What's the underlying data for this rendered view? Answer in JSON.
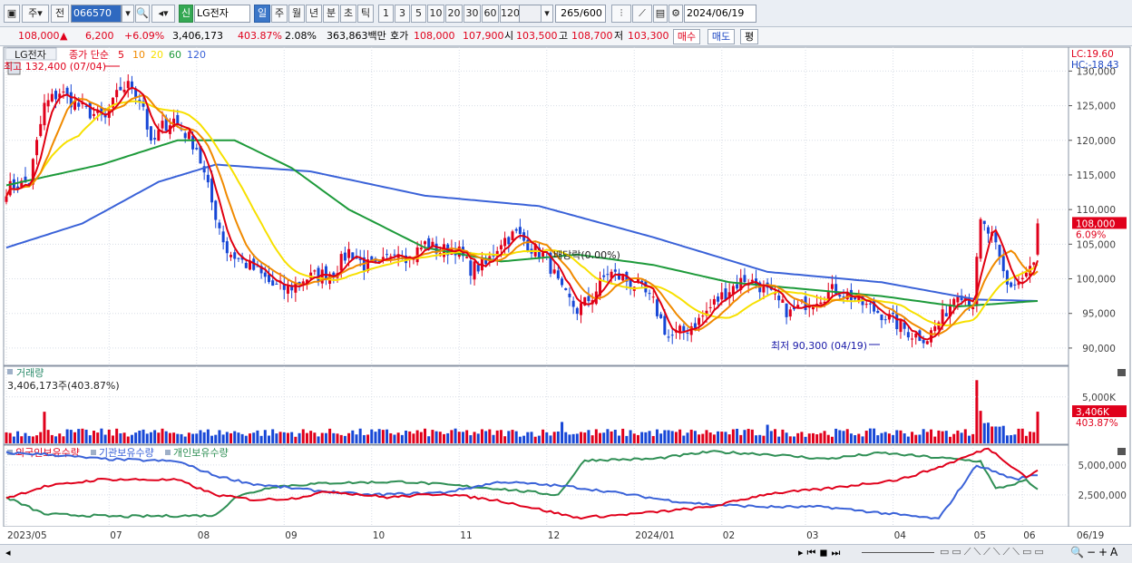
{
  "toolbar": {
    "period": "주",
    "kind": "전",
    "code": "066570",
    "name_badge": "신",
    "name": "LG전자",
    "timeframes": [
      "일",
      "주",
      "월",
      "년",
      "분",
      "초",
      "틱"
    ],
    "intervals": [
      "1",
      "3",
      "5",
      "10",
      "20",
      "30",
      "60",
      "120"
    ],
    "count": "265/600",
    "date": "2024/06/19"
  },
  "quote": {
    "price": "108,000",
    "direction": "▲",
    "change": "6,200",
    "change_pct": "+6.09%",
    "volume": "3,406,173",
    "volume_ratio": "403.87%",
    "turnover_pct": "2.08%",
    "amount": "363,863백만",
    "ask_label": "호가",
    "ask": "108,000",
    "bid": "107,900",
    "open_label": "시",
    "open": "103,500",
    "high_label": "고",
    "high": "108,700",
    "low_label": "저",
    "low": "103,300",
    "buy": "매수",
    "sell": "매도",
    "avg": "평"
  },
  "price_panel": {
    "title": "LG전자",
    "price_label": "종가 단순",
    "ma_periods": [
      "5",
      "10",
      "20",
      "60",
      "120"
    ],
    "high_note": "최고 132,400 (07/04)",
    "low_note": "최저 90,300 (04/19)",
    "dividend_note": "배당락(0.00%)",
    "lc": "LC:19.60",
    "hc": "HC:-18.43",
    "last_price": "108,000",
    "last_pct": "6.09%"
  },
  "volume_panel": {
    "title": "거래량",
    "info": "3,406,173주(403.87%)",
    "last": "3,406K",
    "last_pct": "403.87%"
  },
  "holding_panel": {
    "series_names": [
      "외국인보유수량",
      "기관보유수량",
      "개인보유수량"
    ]
  },
  "x_labels": [
    "2023/05",
    "07",
    "08",
    "09",
    "10",
    "11",
    "12",
    "2024/01",
    "02",
    "03",
    "04",
    "05",
    "06",
    "06/19"
  ],
  "colors": {
    "up": "#e0001b",
    "down": "#1747d6",
    "ma5": "#e00010",
    "ma10": "#f08a00",
    "ma20": "#f7e000",
    "ma60": "#1d9a3a",
    "ma120": "#3a62d8",
    "foreign": "#e0001b",
    "inst": "#3a62d8",
    "retail": "#2f8f55"
  },
  "chart_data": {
    "type": "candlestick",
    "price_axis": {
      "ticks": [
        130000,
        125000,
        120000,
        115000,
        110000,
        105000,
        100000,
        95000,
        90000
      ],
      "ylim": [
        87500,
        132800
      ]
    },
    "volume_axis": {
      "ticks": [
        "5,000K"
      ],
      "ylim": [
        0,
        8000000
      ]
    },
    "holding_axis": {
      "ticks": [
        "5,000,000",
        "2,500,000"
      ],
      "ylim": [
        0,
        6500000
      ]
    },
    "x_months": [
      "2023/05",
      "07",
      "08",
      "09",
      "10",
      "11",
      "12",
      "2024/01",
      "02",
      "03",
      "04",
      "05",
      "06"
    ],
    "close_anchors": [
      [
        0,
        113000
      ],
      [
        6,
        114000
      ],
      [
        10,
        125000
      ],
      [
        14,
        127000
      ],
      [
        20,
        124500
      ],
      [
        26,
        123000
      ],
      [
        30,
        127500
      ],
      [
        33,
        128000
      ],
      [
        36,
        125000
      ],
      [
        38,
        119000
      ],
      [
        41,
        122000
      ],
      [
        44,
        123000
      ],
      [
        47,
        121000
      ],
      [
        50,
        119000
      ],
      [
        54,
        111000
      ],
      [
        58,
        104000
      ],
      [
        62,
        102500
      ],
      [
        66,
        101000
      ],
      [
        70,
        99000
      ],
      [
        74,
        98500
      ],
      [
        78,
        100000
      ],
      [
        82,
        100500
      ],
      [
        86,
        101000
      ],
      [
        90,
        104000
      ],
      [
        94,
        102000
      ],
      [
        98,
        101500
      ],
      [
        102,
        104500
      ],
      [
        106,
        103000
      ],
      [
        110,
        105000
      ],
      [
        114,
        104000
      ],
      [
        118,
        104500
      ],
      [
        122,
        101500
      ],
      [
        126,
        102000
      ],
      [
        130,
        105500
      ],
      [
        134,
        106500
      ],
      [
        138,
        104500
      ],
      [
        142,
        103000
      ],
      [
        146,
        98000
      ],
      [
        150,
        95500
      ],
      [
        154,
        97500
      ],
      [
        158,
        101000
      ],
      [
        162,
        100000
      ],
      [
        166,
        99000
      ],
      [
        170,
        96500
      ],
      [
        174,
        91500
      ],
      [
        178,
        92500
      ],
      [
        182,
        94000
      ],
      [
        186,
        96500
      ],
      [
        190,
        98500
      ],
      [
        194,
        100000
      ],
      [
        198,
        99000
      ],
      [
        202,
        97000
      ],
      [
        206,
        95000
      ],
      [
        210,
        96500
      ],
      [
        214,
        97500
      ],
      [
        218,
        98500
      ],
      [
        222,
        97500
      ],
      [
        226,
        96000
      ],
      [
        230,
        95000
      ],
      [
        234,
        93500
      ],
      [
        238,
        92000
      ],
      [
        242,
        91500
      ],
      [
        246,
        94500
      ],
      [
        250,
        98500
      ],
      [
        254,
        96500
      ],
      [
        256,
        108000
      ],
      [
        259,
        106000
      ],
      [
        263,
        99000
      ],
      [
        266,
        99500
      ],
      [
        270,
        102000
      ],
      [
        271,
        108000
      ]
    ],
    "ma120_anchors": [
      [
        0,
        104500
      ],
      [
        20,
        108000
      ],
      [
        40,
        114000
      ],
      [
        55,
        116500
      ],
      [
        80,
        115500
      ],
      [
        110,
        112000
      ],
      [
        140,
        110500
      ],
      [
        170,
        106000
      ],
      [
        200,
        101000
      ],
      [
        230,
        99500
      ],
      [
        255,
        97000
      ],
      [
        271,
        96800
      ]
    ],
    "ma60_anchors": [
      [
        0,
        113500
      ],
      [
        25,
        116500
      ],
      [
        45,
        120000
      ],
      [
        60,
        120000
      ],
      [
        75,
        116000
      ],
      [
        90,
        110000
      ],
      [
        110,
        104500
      ],
      [
        130,
        102500
      ],
      [
        150,
        103500
      ],
      [
        170,
        102000
      ],
      [
        190,
        99500
      ],
      [
        210,
        98500
      ],
      [
        230,
        97500
      ],
      [
        250,
        96000
      ],
      [
        271,
        96800
      ]
    ],
    "holdings": {
      "foreign": [
        [
          0,
          2250000
        ],
        [
          10,
          3200000
        ],
        [
          25,
          3800000
        ],
        [
          45,
          3750000
        ],
        [
          55,
          2500000
        ],
        [
          65,
          2100000
        ],
        [
          75,
          2200000
        ],
        [
          85,
          2800000
        ],
        [
          100,
          2300000
        ],
        [
          115,
          2600000
        ],
        [
          130,
          2000000
        ],
        [
          150,
          600000
        ],
        [
          160,
          800000
        ],
        [
          175,
          1200000
        ],
        [
          185,
          1500000
        ],
        [
          200,
          2600000
        ],
        [
          215,
          3000000
        ],
        [
          235,
          3800000
        ],
        [
          245,
          4800000
        ],
        [
          258,
          6400000
        ],
        [
          268,
          4000000
        ],
        [
          271,
          4500000
        ]
      ],
      "inst": [
        [
          0,
          6000000
        ],
        [
          10,
          5900000
        ],
        [
          25,
          5500000
        ],
        [
          45,
          5300000
        ],
        [
          55,
          4100000
        ],
        [
          65,
          3400000
        ],
        [
          80,
          2900000
        ],
        [
          95,
          2500000
        ],
        [
          115,
          2700000
        ],
        [
          130,
          3600000
        ],
        [
          148,
          3200000
        ],
        [
          160,
          2700000
        ],
        [
          175,
          2000000
        ],
        [
          185,
          1700000
        ],
        [
          200,
          1500000
        ],
        [
          215,
          1500000
        ],
        [
          230,
          1000000
        ],
        [
          245,
          500000
        ],
        [
          255,
          5000000
        ],
        [
          265,
          3800000
        ],
        [
          271,
          4200000
        ]
      ],
      "retail": [
        [
          0,
          2300000
        ],
        [
          10,
          900000
        ],
        [
          30,
          700000
        ],
        [
          55,
          800000
        ],
        [
          60,
          2300000
        ],
        [
          70,
          3200000
        ],
        [
          85,
          3500000
        ],
        [
          105,
          3600000
        ],
        [
          130,
          3000000
        ],
        [
          145,
          2500000
        ],
        [
          152,
          5400000
        ],
        [
          170,
          5500000
        ],
        [
          185,
          6100000
        ],
        [
          200,
          5900000
        ],
        [
          215,
          5500000
        ],
        [
          230,
          6000000
        ],
        [
          245,
          5600000
        ],
        [
          256,
          5300000
        ],
        [
          260,
          3000000
        ],
        [
          268,
          3700000
        ],
        [
          271,
          2900000
        ]
      ]
    }
  }
}
